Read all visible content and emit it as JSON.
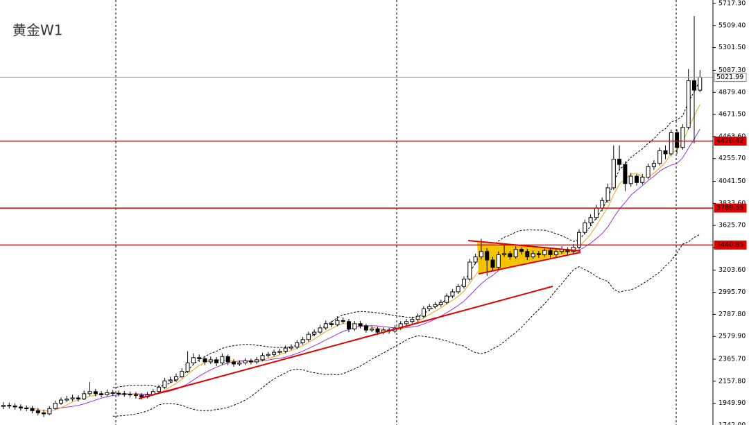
{
  "chart_data": {
    "type": "candlestick",
    "title": "黄金W1",
    "ylim": [
      1745,
      5750
    ],
    "yticks": [
      {
        "value": 5717.3,
        "label": "5717.30"
      },
      {
        "value": 5509.4,
        "label": "5509.40"
      },
      {
        "value": 5301.5,
        "label": "5301.50"
      },
      {
        "value": 5087.3,
        "label": "5087.30"
      },
      {
        "value": 4879.4,
        "label": "4879.40"
      },
      {
        "value": 4671.5,
        "label": "4671.50"
      },
      {
        "value": 4463.6,
        "label": "4463.60"
      },
      {
        "value": 4255.7,
        "label": "4255.70"
      },
      {
        "value": 4041.5,
        "label": "4041.50"
      },
      {
        "value": 3833.6,
        "label": "3833.60"
      },
      {
        "value": 3625.7,
        "label": "3625.70"
      },
      {
        "value": 3417.8,
        "label": "3417.80"
      },
      {
        "value": 3203.6,
        "label": "3203.60"
      },
      {
        "value": 2995.7,
        "label": "2995.70"
      },
      {
        "value": 2787.8,
        "label": "2787.80"
      },
      {
        "value": 2579.9,
        "label": "2579.90"
      },
      {
        "value": 2365.7,
        "label": "2365.70"
      },
      {
        "value": 2157.8,
        "label": "2157.80"
      },
      {
        "value": 1949.9,
        "label": "1949.90"
      },
      {
        "value": 1742,
        "label": "1742.00"
      }
    ],
    "levels": [
      {
        "value": 4420.42,
        "label": "4420.42"
      },
      {
        "value": 3789.55,
        "label": "3789.55"
      },
      {
        "value": 3440.85,
        "label": "3440.85"
      }
    ],
    "current_price": {
      "value": 5021.99,
      "label": "5021.99"
    },
    "level_color": "#e00000",
    "up_color": "#ffffff",
    "down_color": "#000000",
    "ohlc": [
      [
        1920,
        1960,
        1895,
        1930
      ],
      [
        1930,
        1955,
        1900,
        1925
      ],
      [
        1925,
        1950,
        1890,
        1915
      ],
      [
        1915,
        1940,
        1880,
        1905
      ],
      [
        1905,
        1930,
        1875,
        1900
      ],
      [
        1900,
        1925,
        1855,
        1880
      ],
      [
        1880,
        1905,
        1835,
        1860
      ],
      [
        1860,
        1890,
        1820,
        1850
      ],
      [
        1850,
        1920,
        1840,
        1900
      ],
      [
        1900,
        1975,
        1890,
        1950
      ],
      [
        1950,
        2005,
        1935,
        1980
      ],
      [
        1980,
        2020,
        1960,
        1990
      ],
      [
        1990,
        2030,
        1970,
        2000
      ],
      [
        2000,
        2025,
        1965,
        1990
      ],
      [
        1990,
        2070,
        1980,
        2040
      ],
      [
        2040,
        2150,
        2020,
        2060
      ],
      [
        2060,
        2085,
        2015,
        2040
      ],
      [
        2040,
        2065,
        2005,
        2030
      ],
      [
        2030,
        2080,
        2015,
        2050
      ],
      [
        2050,
        2075,
        2020,
        2045
      ],
      [
        2045,
        2070,
        2015,
        2040
      ],
      [
        2040,
        2065,
        2010,
        2035
      ],
      [
        2035,
        2060,
        2005,
        2030
      ],
      [
        2030,
        2055,
        1995,
        2025
      ],
      [
        2025,
        2045,
        1985,
        2010
      ],
      [
        2010,
        2055,
        1995,
        2030
      ],
      [
        2030,
        2085,
        2020,
        2060
      ],
      [
        2060,
        2125,
        2045,
        2100
      ],
      [
        2100,
        2190,
        2085,
        2160
      ],
      [
        2160,
        2200,
        2140,
        2170
      ],
      [
        2170,
        2230,
        2150,
        2200
      ],
      [
        2200,
        2280,
        2185,
        2250
      ],
      [
        2250,
        2440,
        2235,
        2330
      ],
      [
        2330,
        2420,
        2310,
        2380
      ],
      [
        2380,
        2410,
        2340,
        2370
      ],
      [
        2370,
        2395,
        2310,
        2340
      ],
      [
        2340,
        2390,
        2320,
        2360
      ],
      [
        2360,
        2385,
        2300,
        2330
      ],
      [
        2330,
        2420,
        2310,
        2390
      ],
      [
        2390,
        2410,
        2310,
        2340
      ],
      [
        2340,
        2365,
        2295,
        2320
      ],
      [
        2320,
        2355,
        2300,
        2330
      ],
      [
        2330,
        2375,
        2310,
        2350
      ],
      [
        2350,
        2370,
        2315,
        2340
      ],
      [
        2340,
        2385,
        2320,
        2360
      ],
      [
        2360,
        2425,
        2345,
        2400
      ],
      [
        2400,
        2435,
        2380,
        2410
      ],
      [
        2410,
        2455,
        2390,
        2430
      ],
      [
        2430,
        2465,
        2410,
        2440
      ],
      [
        2440,
        2495,
        2420,
        2470
      ],
      [
        2470,
        2505,
        2450,
        2480
      ],
      [
        2480,
        2545,
        2460,
        2520
      ],
      [
        2520,
        2575,
        2500,
        2550
      ],
      [
        2550,
        2625,
        2530,
        2600
      ],
      [
        2600,
        2645,
        2580,
        2620
      ],
      [
        2620,
        2690,
        2600,
        2660
      ],
      [
        2660,
        2730,
        2640,
        2700
      ],
      [
        2700,
        2725,
        2665,
        2690
      ],
      [
        2690,
        2770,
        2675,
        2730
      ],
      [
        2730,
        2760,
        2700,
        2720
      ],
      [
        2720,
        2745,
        2620,
        2650
      ],
      [
        2650,
        2725,
        2630,
        2700
      ],
      [
        2700,
        2725,
        2655,
        2680
      ],
      [
        2680,
        2700,
        2615,
        2640
      ],
      [
        2640,
        2675,
        2620,
        2650
      ],
      [
        2650,
        2670,
        2595,
        2620
      ],
      [
        2620,
        2665,
        2600,
        2640
      ],
      [
        2640,
        2660,
        2605,
        2630
      ],
      [
        2630,
        2685,
        2610,
        2660
      ],
      [
        2660,
        2725,
        2640,
        2700
      ],
      [
        2700,
        2745,
        2680,
        2720
      ],
      [
        2720,
        2765,
        2700,
        2740
      ],
      [
        2740,
        2795,
        2720,
        2770
      ],
      [
        2770,
        2865,
        2750,
        2840
      ],
      [
        2840,
        2885,
        2820,
        2860
      ],
      [
        2860,
        2905,
        2840,
        2880
      ],
      [
        2880,
        2925,
        2860,
        2900
      ],
      [
        2900,
        2985,
        2880,
        2960
      ],
      [
        2960,
        3025,
        2940,
        3000
      ],
      [
        3000,
        3075,
        2980,
        3050
      ],
      [
        3050,
        3145,
        3030,
        3120
      ],
      [
        3120,
        3310,
        3100,
        3280
      ],
      [
        3280,
        3360,
        3260,
        3330
      ],
      [
        3330,
        3500,
        3310,
        3380
      ],
      [
        3380,
        3410,
        3150,
        3300
      ],
      [
        3300,
        3330,
        3200,
        3230
      ],
      [
        3230,
        3380,
        3210,
        3350
      ],
      [
        3350,
        3440,
        3330,
        3360
      ],
      [
        3360,
        3385,
        3300,
        3330
      ],
      [
        3330,
        3430,
        3310,
        3400
      ],
      [
        3400,
        3420,
        3350,
        3380
      ],
      [
        3380,
        3405,
        3300,
        3330
      ],
      [
        3330,
        3390,
        3310,
        3360
      ],
      [
        3360,
        3385,
        3320,
        3350
      ],
      [
        3350,
        3415,
        3330,
        3390
      ],
      [
        3390,
        3410,
        3320,
        3350
      ],
      [
        3350,
        3405,
        3330,
        3380
      ],
      [
        3380,
        3430,
        3360,
        3400
      ],
      [
        3400,
        3420,
        3350,
        3380
      ],
      [
        3380,
        3450,
        3360,
        3420
      ],
      [
        3420,
        3590,
        3400,
        3560
      ],
      [
        3560,
        3680,
        3540,
        3650
      ],
      [
        3650,
        3730,
        3620,
        3700
      ],
      [
        3700,
        3820,
        3680,
        3790
      ],
      [
        3790,
        3890,
        3760,
        3860
      ],
      [
        3860,
        4020,
        3840,
        3980
      ],
      [
        3980,
        4380,
        3960,
        4250
      ],
      [
        4250,
        4380,
        4150,
        4200
      ],
      [
        4200,
        4230,
        3950,
        4020
      ],
      [
        4020,
        4120,
        3990,
        4090
      ],
      [
        4090,
        4110,
        4000,
        4030
      ],
      [
        4030,
        4110,
        4010,
        4080
      ],
      [
        4080,
        4210,
        4060,
        4180
      ],
      [
        4180,
        4240,
        4150,
        4210
      ],
      [
        4210,
        4360,
        4190,
        4330
      ],
      [
        4330,
        4380,
        4250,
        4300
      ],
      [
        4300,
        4530,
        4280,
        4500
      ],
      [
        4500,
        4530,
        4300,
        4360
      ],
      [
        4360,
        4580,
        4340,
        4550
      ],
      [
        4550,
        5100,
        4530,
        4990
      ],
      [
        4990,
        5600,
        4400,
        4900
      ],
      [
        4900,
        5090,
        4880,
        5021.99
      ]
    ]
  }
}
